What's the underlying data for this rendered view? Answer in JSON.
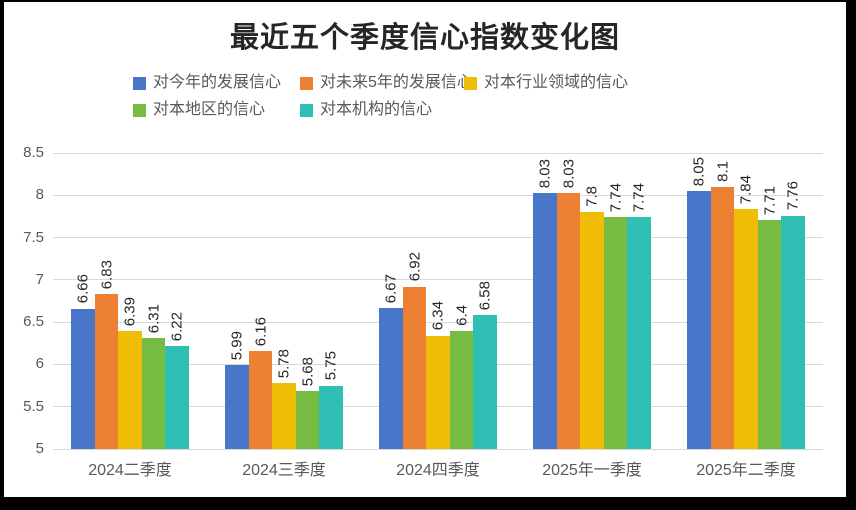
{
  "colors": {
    "frame": "#000000",
    "background": "#FFFFFF",
    "gridline": "#D9D9D9",
    "axis_text": "#595959",
    "data_label": "#262626",
    "title_text": "#262626"
  },
  "chart_data": {
    "type": "bar",
    "title": "最近五个季度信心指数变化图",
    "categories": [
      "2024二季度",
      "2024三季度",
      "2024四季度",
      "2025年一季度",
      "2025年二季度"
    ],
    "series": [
      {
        "name": "对今年的发展信心",
        "color": "#4A76C9",
        "values": [
          6.66,
          5.99,
          6.67,
          8.03,
          8.05
        ],
        "labels": [
          "6.66",
          "5.99",
          "6.67",
          "8.03",
          "8.05"
        ]
      },
      {
        "name": "对未来5年的发展信心",
        "color": "#EC8033",
        "values": [
          6.83,
          6.16,
          6.92,
          8.03,
          8.1
        ],
        "labels": [
          "6.83",
          "6.16",
          "6.92",
          "8.03",
          "8.1"
        ]
      },
      {
        "name": "对本行业领域的信心",
        "color": "#F0BD06",
        "values": [
          6.39,
          5.78,
          6.34,
          7.8,
          7.84
        ],
        "labels": [
          "6.39",
          "5.78",
          "6.34",
          "7.8",
          "7.84"
        ]
      },
      {
        "name": "对本地区的信心",
        "color": "#76BC43",
        "values": [
          6.31,
          5.68,
          6.4,
          7.74,
          7.71
        ],
        "labels": [
          "6.31",
          "5.68",
          "6.4",
          "7.74",
          "7.71"
        ]
      },
      {
        "name": "对本机构的信心",
        "color": "#2FBFB5",
        "values": [
          6.22,
          5.75,
          6.58,
          7.74,
          7.76
        ],
        "labels": [
          "6.22",
          "5.75",
          "6.58",
          "7.74",
          "7.76"
        ]
      }
    ],
    "ylim": [
      5,
      8.5
    ],
    "yticks": [
      5,
      5.5,
      6,
      6.5,
      7,
      7.5,
      8,
      8.5
    ],
    "ytick_labels": [
      "5",
      "5.5",
      "6",
      "6.5",
      "7",
      "7.5",
      "8",
      "8.5"
    ],
    "grid": true,
    "legend_position": "top",
    "value_labels_rotated": true
  }
}
